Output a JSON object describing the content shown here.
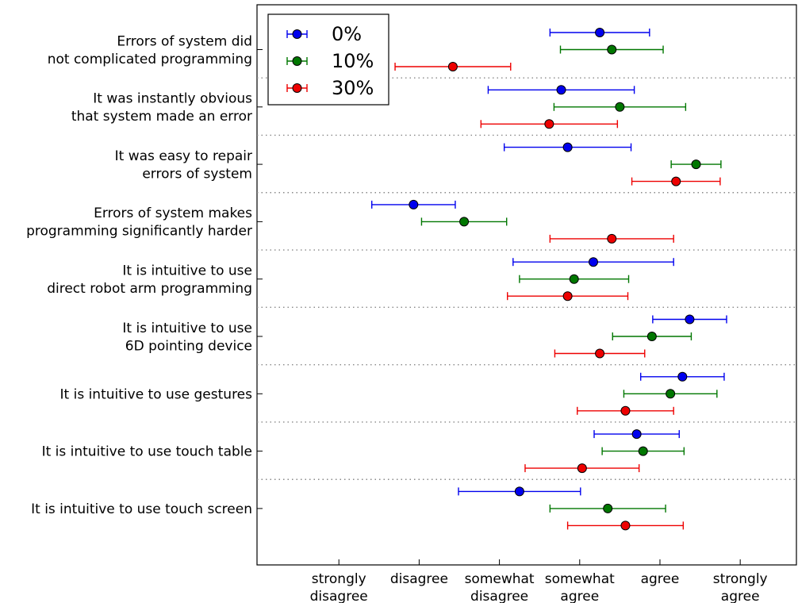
{
  "chart_data": {
    "type": "scatter",
    "orientation": "horizontal",
    "error_bars": true,
    "categories": [
      [
        "Errors of system did",
        "not complicated programming"
      ],
      [
        "It was instantly obvious",
        "that system made an error"
      ],
      [
        "It was easy to repair",
        "errors of system"
      ],
      [
        "Errors of system makes",
        "programming significantly harder"
      ],
      [
        "It is intuitive to use",
        "direct robot arm programming"
      ],
      [
        "It is intuitive to use",
        "6D pointing device"
      ],
      [
        "It is intuitive to use gestures"
      ],
      [
        "It is intuitive to use touch table"
      ],
      [
        "It is intuitive to use touch screen"
      ]
    ],
    "x_ticks": [
      {
        "value": 1,
        "label": [
          "strongly",
          "disagree"
        ]
      },
      {
        "value": 2,
        "label": [
          "disagree"
        ]
      },
      {
        "value": 3,
        "label": [
          "somewhat",
          "disagree"
        ]
      },
      {
        "value": 4,
        "label": [
          "somewhat",
          "agree"
        ]
      },
      {
        "value": 5,
        "label": [
          "agree"
        ]
      },
      {
        "value": 6,
        "label": [
          "strongly",
          "agree"
        ]
      }
    ],
    "xlim": [
      -0.02,
      6.7
    ],
    "legend_position": "top-left",
    "series": [
      {
        "name": "0%",
        "color": "#0000ee",
        "means": [
          4.25,
          3.77,
          3.85,
          1.93,
          4.17,
          5.37,
          5.28,
          4.71,
          3.25
        ],
        "errors": [
          0.62,
          0.91,
          0.79,
          0.52,
          1.0,
          0.46,
          0.52,
          0.53,
          0.76
        ]
      },
      {
        "name": "10%",
        "color": "#007700",
        "means": [
          4.4,
          4.5,
          5.45,
          2.56,
          3.93,
          4.9,
          5.13,
          4.79,
          4.35
        ],
        "errors": [
          0.64,
          0.82,
          0.31,
          0.53,
          0.68,
          0.49,
          0.58,
          0.51,
          0.72
        ]
      },
      {
        "name": "30%",
        "color": "#ee0000",
        "means": [
          2.42,
          3.62,
          5.2,
          4.4,
          3.85,
          4.25,
          4.57,
          4.03,
          4.57
        ],
        "errors": [
          0.72,
          0.85,
          0.55,
          0.77,
          0.75,
          0.56,
          0.6,
          0.71,
          0.72
        ]
      }
    ]
  }
}
